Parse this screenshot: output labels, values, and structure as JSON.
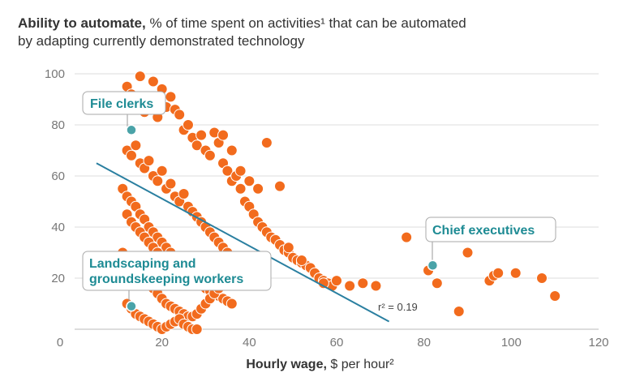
{
  "header": {
    "title_bold": "Ability to automate,",
    "title_rest": " % of time spent on activities¹ that can be automated",
    "title_line2": "by adapting currently demonstrated technology"
  },
  "xaxis": {
    "label_bold": "Hourly wage,",
    "label_rest": " $ per hour²"
  },
  "annotation": {
    "r2": "r² = 0.19"
  },
  "colors": {
    "points": "#f26b1d",
    "highlight": "#4aa3a8",
    "trend": "#2a7fa0",
    "callout_text": "#1e8b94"
  },
  "chart_data": {
    "type": "scatter",
    "title": "Ability to automate, % of time spent on activities¹ that can be automated by adapting currently demonstrated technology",
    "xlabel": "Hourly wage, $ per hour²",
    "ylabel": "",
    "xlim": [
      0,
      120
    ],
    "ylim": [
      0,
      100
    ],
    "xticks": [
      0,
      20,
      40,
      60,
      80,
      100,
      120
    ],
    "yticks": [
      20,
      40,
      60,
      80,
      100
    ],
    "grid": "horizontal",
    "series": [
      {
        "values_note": "occupations",
        "x": [
          12,
          13,
          14,
          15,
          16,
          17,
          18,
          19,
          20,
          21,
          22,
          23,
          24,
          25,
          26,
          27,
          28,
          29,
          30,
          31,
          32,
          33,
          34,
          35,
          36,
          37,
          38,
          39,
          40,
          41,
          42,
          43,
          44,
          45,
          46,
          47,
          48,
          49,
          50,
          51,
          52,
          53,
          54,
          55,
          56,
          57,
          58,
          59,
          12,
          13,
          14,
          15,
          16,
          17,
          18,
          19,
          20,
          21,
          22,
          23,
          24,
          25,
          26,
          27,
          28,
          29,
          30,
          31,
          32,
          33,
          34,
          35,
          36,
          37,
          38,
          11,
          12,
          13,
          14,
          15,
          16,
          17,
          18,
          19,
          20,
          21,
          22,
          23,
          24,
          25,
          26,
          27,
          28,
          29,
          30,
          31,
          32,
          33,
          34,
          35,
          36,
          11,
          12,
          13,
          14,
          15,
          16,
          17,
          18,
          19,
          20,
          21,
          22,
          23,
          24,
          25,
          26,
          27,
          28,
          29,
          30,
          31,
          32,
          33,
          12,
          13,
          14,
          15,
          16,
          17,
          18,
          19,
          20,
          21,
          22,
          23,
          24,
          25,
          26,
          27,
          28,
          12,
          13,
          14,
          15,
          16,
          17,
          18,
          19,
          20,
          21,
          22,
          23,
          24,
          25,
          34,
          36,
          38,
          40,
          42,
          44,
          47,
          49,
          52,
          57,
          60,
          63,
          66,
          69,
          76,
          81,
          83,
          88,
          90,
          95,
          96,
          97,
          101,
          107,
          110
        ],
        "y": [
          95,
          92,
          88,
          99,
          85,
          90,
          97,
          83,
          94,
          87,
          91,
          86,
          84,
          78,
          80,
          75,
          72,
          76,
          70,
          68,
          77,
          73,
          65,
          62,
          58,
          60,
          55,
          50,
          48,
          45,
          42,
          40,
          38,
          36,
          35,
          33,
          31,
          30,
          28,
          27,
          26,
          25,
          24,
          22,
          20,
          19,
          18,
          17,
          70,
          68,
          72,
          65,
          63,
          66,
          60,
          58,
          62,
          55,
          57,
          52,
          50,
          53,
          48,
          46,
          44,
          42,
          40,
          38,
          36,
          34,
          32,
          30,
          28,
          26,
          24,
          55,
          52,
          50,
          48,
          45,
          43,
          40,
          38,
          36,
          34,
          32,
          30,
          28,
          26,
          25,
          23,
          22,
          20,
          18,
          16,
          15,
          14,
          13,
          12,
          11,
          10,
          30,
          28,
          26,
          24,
          22,
          20,
          18,
          16,
          14,
          12,
          10,
          9,
          8,
          7,
          6,
          5,
          5,
          6,
          8,
          10,
          12,
          14,
          16,
          10,
          8,
          6,
          5,
          4,
          3,
          2,
          1,
          0,
          1,
          2,
          3,
          4,
          2,
          1,
          0,
          0,
          45,
          42,
          40,
          38,
          36,
          34,
          32,
          30,
          28,
          26,
          24,
          22,
          20,
          18,
          76,
          70,
          62,
          58,
          55,
          73,
          56,
          32,
          27,
          18,
          19,
          17,
          18,
          17,
          36,
          23,
          18,
          7,
          30,
          19,
          21,
          22,
          22,
          20,
          13
        ]
      }
    ],
    "highlights": [
      {
        "label": "File clerks",
        "x": 13,
        "y": 78
      },
      {
        "label": "Chief executives",
        "x": 82,
        "y": 25
      },
      {
        "label_line1": "Landscaping and",
        "label_line2": "groundskeeping workers",
        "x": 13,
        "y": 9
      }
    ],
    "trendline": {
      "x": [
        5,
        72
      ],
      "y": [
        65,
        3
      ],
      "r2": 0.19
    }
  }
}
